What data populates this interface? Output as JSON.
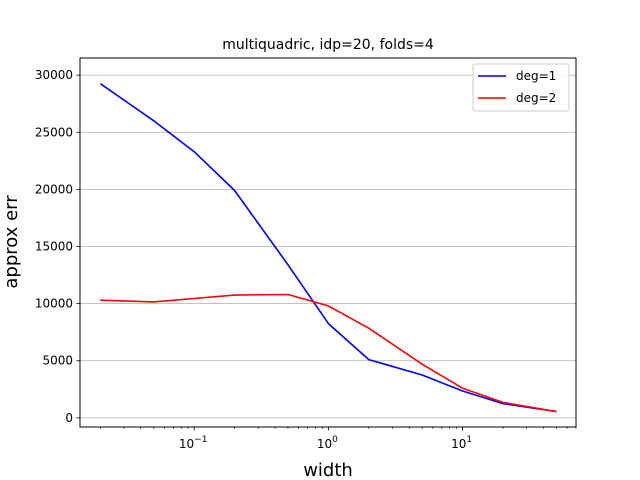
{
  "chart_data": {
    "type": "line",
    "title": "multiquadric, idp=20, folds=4",
    "xlabel": "width",
    "ylabel": "approx err",
    "xscale": "log",
    "xlim": [
      0.0141,
      70
    ],
    "ylim": [
      -800,
      31500
    ],
    "grid": "horizontal",
    "legend_position": "top-right",
    "y_ticks": [
      0,
      5000,
      10000,
      15000,
      20000,
      25000,
      30000
    ],
    "x_tick_labels": [
      {
        "base": "10",
        "exp": "−1",
        "value": 0.1
      },
      {
        "base": "10",
        "exp": "0",
        "value": 1
      },
      {
        "base": "10",
        "exp": "1",
        "value": 10
      }
    ],
    "series": [
      {
        "name": "deg=1",
        "color": "#0000ff",
        "x": [
          0.02,
          0.05,
          0.1,
          0.2,
          0.5,
          1,
          2,
          5,
          10,
          20,
          50
        ],
        "y": [
          29250,
          26000,
          23300,
          19900,
          13400,
          8250,
          5100,
          3750,
          2350,
          1250,
          550
        ]
      },
      {
        "name": "deg=2",
        "color": "#ff0000",
        "x": [
          0.02,
          0.05,
          0.1,
          0.2,
          0.5,
          1,
          2,
          5,
          10,
          20,
          50
        ],
        "y": [
          10300,
          10150,
          10450,
          10750,
          10800,
          9800,
          7850,
          4700,
          2600,
          1350,
          550
        ]
      }
    ]
  }
}
